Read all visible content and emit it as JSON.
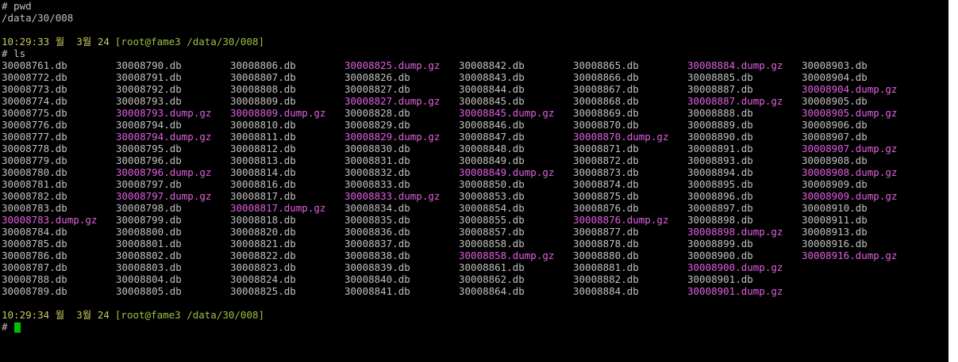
{
  "terminal": {
    "colors": {
      "background": "#000000",
      "text": "#c0c0c0",
      "time": "#c8c860",
      "context": "#9cc040",
      "archive": "#e060e0",
      "cursor": "#00c000"
    },
    "lines": [
      {
        "text": "# pwd"
      },
      {
        "text": "/data/30/008"
      },
      {
        "time": "10:29:33 월  3월 24",
        "context": "[root@fame3 /data/30/008]"
      },
      {
        "text": "# ls"
      }
    ],
    "listing": [
      [
        "30008761.db",
        "30008772.db",
        "30008773.db",
        "30008774.db",
        "30008775.db",
        "30008776.db",
        "30008777.db",
        "30008778.db",
        "30008779.db",
        "30008780.db",
        "30008781.db",
        "30008782.db",
        "30008783.db",
        {
          "name": "30008783.dump.gz",
          "archive": true
        },
        "30008784.db",
        "30008785.db",
        "30008786.db",
        "30008787.db",
        "30008788.db",
        "30008789.db"
      ],
      [
        "30008790.db",
        "30008791.db",
        "30008792.db",
        "30008793.db",
        {
          "name": "30008793.dump.gz",
          "archive": true
        },
        "30008794.db",
        {
          "name": "30008794.dump.gz",
          "archive": true
        },
        "30008795.db",
        "30008796.db",
        {
          "name": "30008796.dump.gz",
          "archive": true
        },
        "30008797.db",
        {
          "name": "30008797.dump.gz",
          "archive": true
        },
        "30008798.db",
        "30008799.db",
        "30008800.db",
        "30008801.db",
        "30008802.db",
        "30008803.db",
        "30008804.db",
        "30008805.db"
      ],
      [
        "30008806.db",
        "30008807.db",
        "30008808.db",
        "30008809.db",
        {
          "name": "30008809.dump.gz",
          "archive": true
        },
        "30008810.db",
        "30008811.db",
        "30008812.db",
        "30008813.db",
        "30008814.db",
        "30008816.db",
        "30008817.db",
        {
          "name": "30008817.dump.gz",
          "archive": true
        },
        "30008818.db",
        "30008820.db",
        "30008821.db",
        "30008822.db",
        "30008823.db",
        "30008824.db",
        "30008825.db"
      ],
      [
        {
          "name": "30008825.dump.gz",
          "archive": true
        },
        "30008826.db",
        "30008827.db",
        {
          "name": "30008827.dump.gz",
          "archive": true
        },
        "30008828.db",
        "30008829.db",
        {
          "name": "30008829.dump.gz",
          "archive": true
        },
        "30008830.db",
        "30008831.db",
        "30008832.db",
        "30008833.db",
        {
          "name": "30008833.dump.gz",
          "archive": true
        },
        "30008834.db",
        "30008835.db",
        "30008836.db",
        "30008837.db",
        "30008838.db",
        "30008839.db",
        "30008840.db",
        "30008841.db"
      ],
      [
        "30008842.db",
        "30008843.db",
        "30008844.db",
        "30008845.db",
        {
          "name": "30008845.dump.gz",
          "archive": true
        },
        "30008846.db",
        "30008847.db",
        "30008848.db",
        "30008849.db",
        {
          "name": "30008849.dump.gz",
          "archive": true
        },
        "30008850.db",
        "30008853.db",
        "30008854.db",
        "30008855.db",
        "30008857.db",
        "30008858.db",
        {
          "name": "30008858.dump.gz",
          "archive": true
        },
        "30008861.db",
        "30008862.db",
        "30008864.db"
      ],
      [
        "30008865.db",
        "30008866.db",
        "30008867.db",
        "30008868.db",
        "30008869.db",
        "30008870.db",
        {
          "name": "30008870.dump.gz",
          "archive": true
        },
        "30008871.db",
        "30008872.db",
        "30008873.db",
        "30008874.db",
        "30008875.db",
        "30008876.db",
        {
          "name": "30008876.dump.gz",
          "archive": true
        },
        "30008877.db",
        "30008878.db",
        "30008880.db",
        "30008881.db",
        "30008882.db",
        "30008884.db"
      ],
      [
        {
          "name": "30008884.dump.gz",
          "archive": true
        },
        "30008885.db",
        "30008887.db",
        {
          "name": "30008887.dump.gz",
          "archive": true
        },
        "30008888.db",
        "30008889.db",
        "30008890.db",
        "30008891.db",
        "30008893.db",
        "30008894.db",
        "30008895.db",
        "30008896.db",
        "30008897.db",
        "30008898.db",
        {
          "name": "30008898.dump.gz",
          "archive": true
        },
        "30008899.db",
        "30008900.db",
        {
          "name": "30008900.dump.gz",
          "archive": true
        },
        "30008901.db",
        {
          "name": "30008901.dump.gz",
          "archive": true
        }
      ],
      [
        "30008903.db",
        "30008904.db",
        {
          "name": "30008904.dump.gz",
          "archive": true
        },
        "30008905.db",
        {
          "name": "30008905.dump.gz",
          "archive": true
        },
        "30008906.db",
        "30008907.db",
        {
          "name": "30008907.dump.gz",
          "archive": true
        },
        "30008908.db",
        {
          "name": "30008908.dump.gz",
          "archive": true
        },
        "30008909.db",
        {
          "name": "30008909.dump.gz",
          "archive": true
        },
        "30008910.db",
        "30008911.db",
        "30008913.db",
        "30008916.db",
        {
          "name": "30008916.dump.gz",
          "archive": true
        }
      ]
    ],
    "after": [
      {
        "time": "10:29:34 월  3월 24",
        "context": "[root@fame3 /data/30/008]"
      },
      {
        "text": "#"
      }
    ]
  }
}
